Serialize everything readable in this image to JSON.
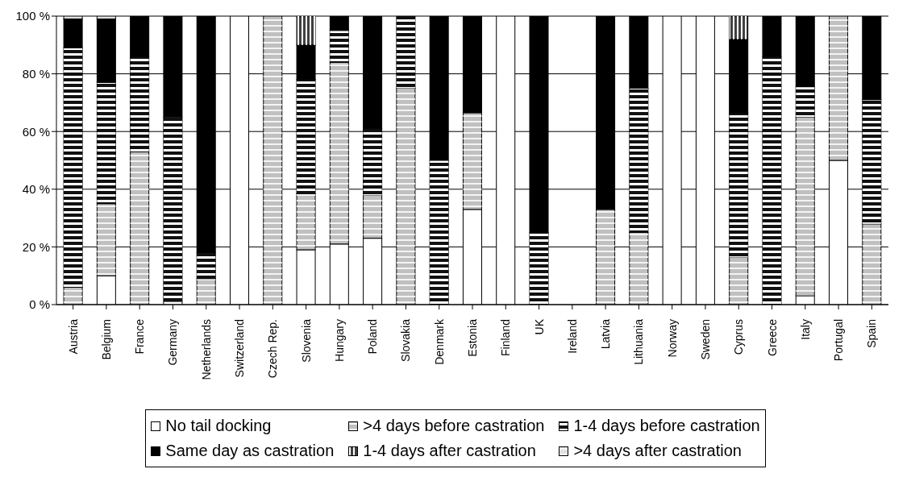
{
  "chart_data": {
    "type": "bar",
    "stacked": true,
    "categories": [
      "Austria",
      "Belgium",
      "France",
      "Germany",
      "Netherlands",
      "Switzerland",
      "Czech Rep.",
      "Slovenia",
      "Hungary",
      "Poland",
      "Slovakia",
      "Denmark",
      "Estonia",
      "Finland",
      "UK",
      "Ireland",
      "Latvia",
      "Lithuania",
      "Norway",
      "Sweden",
      "Cyprus",
      "Greece",
      "Italy",
      "Portugal",
      "Spain"
    ],
    "series": [
      {
        "name": "No tail docking",
        "color": "#ffffff",
        "values": [
          0,
          10,
          null,
          1,
          0,
          100,
          0,
          19,
          21,
          23,
          0,
          0,
          33,
          100,
          0,
          null,
          0,
          0,
          100,
          100,
          0,
          0,
          3,
          50,
          0
        ]
      },
      {
        "name": ">4 days before castration",
        "color": "#c0c0c0",
        "values": [
          6,
          25,
          53,
          0,
          9,
          0,
          100,
          19.5,
          63,
          15,
          75,
          0,
          33.5,
          0,
          0,
          null,
          33,
          25,
          0,
          0,
          16.5,
          0,
          62,
          50,
          28
        ]
      },
      {
        "name": "1-4 days before castration",
        "color": "#111111",
        "values": [
          83,
          42,
          33,
          64,
          9,
          0,
          0,
          39.5,
          11,
          23,
          25,
          50,
          0,
          0,
          25,
          null,
          0,
          50,
          0,
          0,
          50,
          86,
          10.5,
          0,
          43
        ]
      },
      {
        "name": "Same day as castration",
        "color": "#000000",
        "values": [
          10,
          22,
          14,
          35,
          82,
          0,
          0,
          12,
          5,
          39,
          0,
          50,
          33.5,
          0,
          75,
          null,
          67,
          25,
          0,
          0,
          25.5,
          14,
          24.5,
          0,
          29
        ]
      },
      {
        "name": "1-4 days after castration",
        "color": "#404040",
        "values": [
          0,
          0,
          0,
          0,
          0,
          0,
          0,
          10,
          0,
          0,
          0,
          0,
          0,
          0,
          0,
          null,
          0,
          0,
          0,
          0,
          8,
          0,
          0,
          0,
          0
        ]
      },
      {
        "name": ">4 days after castration",
        "color": "#e0e0e0",
        "values": [
          1,
          1,
          0,
          0,
          0,
          0,
          0,
          0,
          0,
          0,
          0,
          0,
          0,
          0,
          0,
          null,
          0,
          0,
          0,
          0,
          0,
          0,
          0,
          0,
          0
        ]
      }
    ],
    "ylim": [
      0,
      100
    ],
    "yticks": [
      {
        "value": 0,
        "label": "0 %"
      },
      {
        "value": 20,
        "label": "20 %"
      },
      {
        "value": 40,
        "label": "40 %"
      },
      {
        "value": 60,
        "label": "60 %"
      },
      {
        "value": 80,
        "label": "80 %"
      },
      {
        "value": 100,
        "label": "100 %"
      }
    ],
    "grid": "y",
    "legend": "bottom"
  }
}
